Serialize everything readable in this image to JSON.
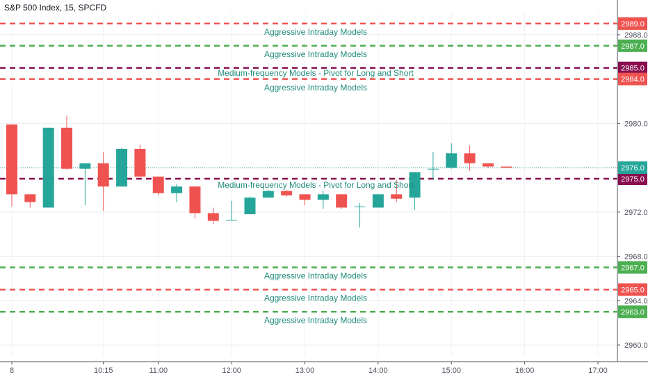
{
  "header": {
    "symbol_title": "S&P 500 Index, 15, SPCFD"
  },
  "chart_data": {
    "type": "candlestick",
    "title": "S&P 500 Index, 15, SPCFD",
    "ylim": [
      2959,
      2990
    ],
    "y_ticks": [
      2960.0,
      2964.0,
      2968.0,
      2972.0,
      2976.0,
      2980.0,
      2984.0,
      2988.0
    ],
    "y_tick_labels": [
      "2960.0",
      "2964.0",
      "2968.0",
      "2972.0",
      "2976.0",
      "2980.0",
      "2984.0",
      "2988.0"
    ],
    "x_ticks": [
      "8",
      "10:15",
      "11:00",
      "12:00",
      "13:00",
      "14:00",
      "15:00",
      "16:00",
      "17:00"
    ],
    "x_tick_positions_hours": [
      9.0,
      10.25,
      11.0,
      12.0,
      13.0,
      14.0,
      15.0,
      16.0,
      17.0
    ],
    "grid": true,
    "colors": {
      "up": "#26a69a",
      "down": "#ef5350",
      "current_price": "#26a69a"
    },
    "current_price": 2976.0,
    "candles": [
      {
        "time": 9.0,
        "open": 2979.9,
        "high": 2979.9,
        "low": 2972.5,
        "close": 2973.6
      },
      {
        "time": 9.25,
        "open": 2973.6,
        "high": 2973.6,
        "low": 2972.4,
        "close": 2972.9
      },
      {
        "time": 9.5,
        "open": 2972.4,
        "high": 2979.6,
        "low": 2972.4,
        "close": 2979.6
      },
      {
        "time": 9.75,
        "open": 2979.6,
        "high": 2980.7,
        "low": 2975.8,
        "close": 2975.9
      },
      {
        "time": 10.0,
        "open": 2975.9,
        "high": 2976.4,
        "low": 2972.6,
        "close": 2976.4
      },
      {
        "time": 10.25,
        "open": 2976.4,
        "high": 2977.4,
        "low": 2972.1,
        "close": 2974.3
      },
      {
        "time": 10.5,
        "open": 2974.3,
        "high": 2977.8,
        "low": 2974.3,
        "close": 2977.7
      },
      {
        "time": 10.75,
        "open": 2977.7,
        "high": 2978.1,
        "low": 2975.2,
        "close": 2975.2
      },
      {
        "time": 11.0,
        "open": 2975.2,
        "high": 2975.2,
        "low": 2973.5,
        "close": 2973.7
      },
      {
        "time": 11.25,
        "open": 2973.7,
        "high": 2974.5,
        "low": 2972.9,
        "close": 2974.3
      },
      {
        "time": 11.5,
        "open": 2974.3,
        "high": 2974.3,
        "low": 2971.4,
        "close": 2971.9
      },
      {
        "time": 11.75,
        "open": 2971.9,
        "high": 2972.4,
        "low": 2970.9,
        "close": 2971.2
      },
      {
        "time": 12.0,
        "open": 2971.3,
        "high": 2973.0,
        "low": 2971.3,
        "close": 2971.3
      },
      {
        "time": 12.25,
        "open": 2971.8,
        "high": 2973.4,
        "low": 2971.8,
        "close": 2973.3
      },
      {
        "time": 12.5,
        "open": 2973.3,
        "high": 2974.0,
        "low": 2973.3,
        "close": 2973.9
      },
      {
        "time": 12.75,
        "open": 2973.9,
        "high": 2974.0,
        "low": 2973.4,
        "close": 2973.5
      },
      {
        "time": 13.0,
        "open": 2973.6,
        "high": 2973.6,
        "low": 2972.6,
        "close": 2973.1
      },
      {
        "time": 13.25,
        "open": 2973.1,
        "high": 2973.9,
        "low": 2972.3,
        "close": 2973.6
      },
      {
        "time": 13.5,
        "open": 2973.6,
        "high": 2973.6,
        "low": 2972.3,
        "close": 2972.4
      },
      {
        "time": 13.75,
        "open": 2972.5,
        "high": 2972.8,
        "low": 2970.6,
        "close": 2972.5
      },
      {
        "time": 14.0,
        "open": 2972.4,
        "high": 2973.6,
        "low": 2972.4,
        "close": 2973.6
      },
      {
        "time": 14.25,
        "open": 2973.6,
        "high": 2974.9,
        "low": 2972.9,
        "close": 2973.2
      },
      {
        "time": 14.5,
        "open": 2973.3,
        "high": 2975.6,
        "low": 2972.2,
        "close": 2975.6
      },
      {
        "time": 14.75,
        "open": 2975.9,
        "high": 2977.4,
        "low": 2974.9,
        "close": 2975.9
      },
      {
        "time": 15.0,
        "open": 2976.0,
        "high": 2978.2,
        "low": 2975.9,
        "close": 2977.3
      },
      {
        "time": 15.25,
        "open": 2977.3,
        "high": 2978.0,
        "low": 2975.7,
        "close": 2976.4
      },
      {
        "time": 15.5,
        "open": 2976.4,
        "high": 2976.4,
        "low": 2976.0,
        "close": 2976.1
      },
      {
        "time": 15.75,
        "open": 2976.1,
        "high": 2976.1,
        "low": 2976.0,
        "close": 2976.0
      }
    ],
    "levels": [
      {
        "price": 2989.0,
        "label_text": "2989.0",
        "color": "#ef5350",
        "style": "dashed",
        "caption": ""
      },
      {
        "price": 2988.3,
        "label_text": "",
        "color": "#ef5350",
        "style": "none",
        "caption": "Aggressive Intraday Models"
      },
      {
        "price": 2987.0,
        "label_text": "2987.0",
        "color": "#4caf50",
        "style": "dashed",
        "caption": ""
      },
      {
        "price": 2986.3,
        "label_text": "",
        "color": "#4caf50",
        "style": "none",
        "caption": "Aggressive Intraday Models"
      },
      {
        "price": 2985.0,
        "label_text": "2985.0",
        "color": "#880e4f",
        "style": "dashed",
        "caption": ""
      },
      {
        "price": 2984.6,
        "label_text": "",
        "color": "#880e4f",
        "style": "none",
        "caption": "Medium-frequency Models - Pivot for Long and Short"
      },
      {
        "price": 2984.0,
        "label_text": "2984.0",
        "color": "#ef5350",
        "style": "dashed",
        "caption": ""
      },
      {
        "price": 2983.3,
        "label_text": "",
        "color": "#ef5350",
        "style": "none",
        "caption": "Aggressive Intraday Models"
      },
      {
        "price": 2975.0,
        "label_text": "2975.0",
        "color": "#880e4f",
        "style": "dashed",
        "caption": ""
      },
      {
        "price": 2974.5,
        "label_text": "",
        "color": "#880e4f",
        "style": "none",
        "caption": "Medium-frequency Models - Pivot for Long and Short"
      },
      {
        "price": 2967.0,
        "label_text": "2967.0",
        "color": "#4caf50",
        "style": "dashed",
        "caption": ""
      },
      {
        "price": 2966.3,
        "label_text": "",
        "color": "#4caf50",
        "style": "none",
        "caption": "Aggressive Intraday Models"
      },
      {
        "price": 2965.0,
        "label_text": "2965.0",
        "color": "#ef5350",
        "style": "dashed",
        "caption": ""
      },
      {
        "price": 2964.3,
        "label_text": "",
        "color": "#ef5350",
        "style": "none",
        "caption": "Aggressive Intraday Models"
      },
      {
        "price": 2963.0,
        "label_text": "2963.0",
        "color": "#4caf50",
        "style": "dashed",
        "caption": ""
      },
      {
        "price": 2962.3,
        "label_text": "",
        "color": "#4caf50",
        "style": "none",
        "caption": "Aggressive Intraday Models"
      }
    ]
  }
}
